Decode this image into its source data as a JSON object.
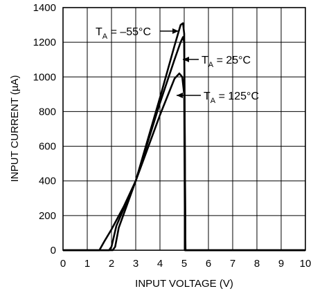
{
  "chart_data": {
    "type": "line",
    "xlabel": "INPUT VOLTAGE (V)",
    "ylabel": "INPUT CURRENT (µA)",
    "xlim": [
      0,
      10
    ],
    "ylim": [
      0,
      1400
    ],
    "xticks": [
      "0",
      "1",
      "2",
      "3",
      "4",
      "5",
      "6",
      "7",
      "8",
      "9",
      "10"
    ],
    "yticks": [
      "0",
      "200",
      "400",
      "600",
      "800",
      "1000",
      "1200",
      "1400"
    ],
    "grid": true,
    "series": [
      {
        "name": "T_A = –55°C",
        "label_main": "T",
        "label_sub": "A",
        "label_rest": " = –55°C",
        "points": [
          [
            0,
            0
          ],
          [
            2.05,
            0
          ],
          [
            2.15,
            20
          ],
          [
            2.3,
            130
          ],
          [
            3.0,
            400
          ],
          [
            4.0,
            880
          ],
          [
            4.6,
            1180
          ],
          [
            4.85,
            1300
          ],
          [
            4.95,
            1310
          ],
          [
            5.0,
            1250
          ],
          [
            5.05,
            0
          ],
          [
            10,
            0
          ]
        ]
      },
      {
        "name": "T_A = 25°C",
        "label_main": "T",
        "label_sub": "A",
        "label_rest": " = 25°C",
        "points": [
          [
            0,
            0
          ],
          [
            1.9,
            0
          ],
          [
            2.0,
            20
          ],
          [
            2.2,
            140
          ],
          [
            3.0,
            400
          ],
          [
            4.0,
            850
          ],
          [
            4.6,
            1100
          ],
          [
            4.85,
            1200
          ],
          [
            4.95,
            1230
          ],
          [
            5.0,
            1200
          ],
          [
            5.05,
            0
          ],
          [
            10,
            0
          ]
        ]
      },
      {
        "name": "T_A = 125°C",
        "label_main": "T",
        "label_sub": "A",
        "label_rest": " = 125°C",
        "points": [
          [
            0,
            0
          ],
          [
            1.5,
            0
          ],
          [
            1.7,
            50
          ],
          [
            2.0,
            120
          ],
          [
            2.5,
            250
          ],
          [
            3.0,
            400
          ],
          [
            4.0,
            780
          ],
          [
            4.6,
            990
          ],
          [
            4.8,
            1020
          ],
          [
            4.92,
            1000
          ],
          [
            5.0,
            900
          ],
          [
            5.03,
            0
          ],
          [
            10,
            0
          ]
        ]
      }
    ]
  }
}
